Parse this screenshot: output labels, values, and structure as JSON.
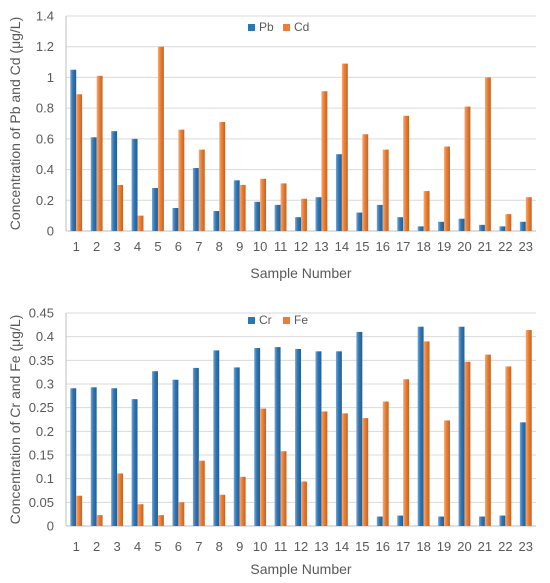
{
  "chart_data": [
    {
      "type": "bar",
      "ylabel": "Concentration of Pb and Cd (μg/L)",
      "xlabel": "Sample Number",
      "categories": [
        "1",
        "2",
        "3",
        "4",
        "5",
        "6",
        "7",
        "8",
        "9",
        "10",
        "11",
        "12",
        "13",
        "14",
        "15",
        "16",
        "17",
        "18",
        "19",
        "20",
        "21",
        "22",
        "23"
      ],
      "ylim": [
        0,
        1.4
      ],
      "yticks": [
        "0",
        "0.2",
        "0.4",
        "0.6",
        "0.8",
        "1",
        "1.2",
        "1.4"
      ],
      "grid": true,
      "legend_position": "top-center",
      "series": [
        {
          "name": "Pb",
          "color": "#2E75B6",
          "values": [
            1.05,
            0.61,
            0.65,
            0.6,
            0.28,
            0.15,
            0.41,
            0.13,
            0.33,
            0.19,
            0.17,
            0.09,
            0.22,
            0.5,
            0.12,
            0.17,
            0.09,
            0.03,
            0.06,
            0.08,
            0.04,
            0.03,
            0.06
          ]
        },
        {
          "name": "Cd",
          "color": "#ED7D31",
          "values": [
            0.89,
            1.01,
            0.3,
            0.1,
            1.2,
            0.66,
            0.53,
            0.71,
            0.3,
            0.34,
            0.31,
            0.21,
            0.91,
            1.09,
            0.63,
            0.53,
            0.75,
            0.26,
            0.55,
            0.81,
            1.0,
            0.11,
            0.22
          ]
        }
      ]
    },
    {
      "type": "bar",
      "ylabel": "Concentration of Cr and Fe (μg/L)",
      "xlabel": "Sample Number",
      "categories": [
        "1",
        "2",
        "3",
        "4",
        "5",
        "6",
        "7",
        "8",
        "9",
        "10",
        "11",
        "12",
        "13",
        "14",
        "15",
        "16",
        "17",
        "18",
        "19",
        "20",
        "21",
        "22",
        "23"
      ],
      "ylim": [
        0,
        0.45
      ],
      "yticks": [
        "0",
        "0.05",
        "0.1",
        "0.15",
        "0.2",
        "0.25",
        "0.3",
        "0.35",
        "0.4",
        "0.45"
      ],
      "grid": true,
      "legend_position": "top-center",
      "series": [
        {
          "name": "Cr",
          "color": "#2E75B6",
          "values": [
            0.291,
            0.293,
            0.291,
            0.268,
            0.327,
            0.309,
            0.334,
            0.371,
            0.335,
            0.376,
            0.378,
            0.374,
            0.369,
            0.369,
            0.41,
            0.02,
            0.022,
            0.421,
            0.02,
            0.421,
            0.02,
            0.022,
            0.219
          ]
        },
        {
          "name": "Fe",
          "color": "#ED7D31",
          "values": [
            0.064,
            0.023,
            0.111,
            0.046,
            0.023,
            0.05,
            0.138,
            0.066,
            0.104,
            0.248,
            0.158,
            0.094,
            0.242,
            0.238,
            0.228,
            0.263,
            0.31,
            0.39,
            0.223,
            0.347,
            0.362,
            0.337,
            0.414
          ]
        }
      ]
    }
  ]
}
